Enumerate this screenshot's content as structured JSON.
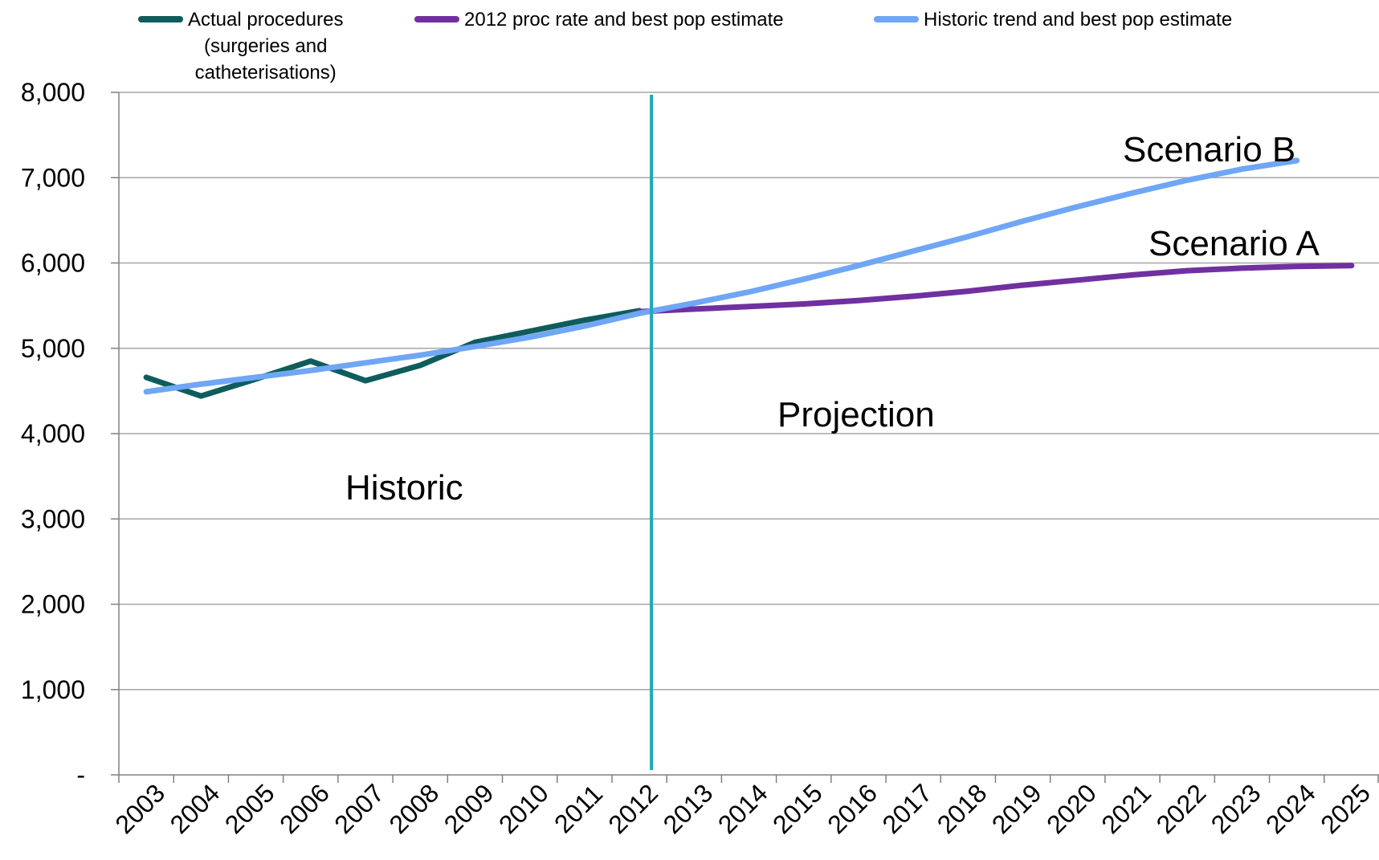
{
  "chart_data": {
    "type": "line",
    "title": "",
    "xlabel": "",
    "ylabel": "",
    "ylim": [
      0,
      8000
    ],
    "yticks": [
      0,
      1000,
      2000,
      3000,
      4000,
      5000,
      6000,
      7000,
      8000
    ],
    "ytick_labels": [
      "-",
      "1,000",
      "2,000",
      "3,000",
      "4,000",
      "5,000",
      "6,000",
      "7,000",
      "8,000"
    ],
    "categories": [
      "2003",
      "2004",
      "2005",
      "2006",
      "2007",
      "2008",
      "2009",
      "2010",
      "2011",
      "2012",
      "2013",
      "2014",
      "2015",
      "2016",
      "2017",
      "2018",
      "2019",
      "2020",
      "2021",
      "2022",
      "2023",
      "2024",
      "2025"
    ],
    "grid": true,
    "legend_position": "top",
    "series": [
      {
        "name": "Actual procedures (surgeries and catheterisations)",
        "color": "#0f5c5c",
        "values": [
          4660,
          4440,
          4640,
          4850,
          4620,
          4800,
          5070,
          5200,
          5330,
          5440,
          null,
          null,
          null,
          null,
          null,
          null,
          null,
          null,
          null,
          null,
          null,
          null,
          null
        ]
      },
      {
        "name": "2012 proc rate and best pop estimate",
        "color": "#7030a0",
        "values": [
          null,
          null,
          null,
          null,
          null,
          null,
          null,
          null,
          null,
          5430,
          5460,
          5490,
          5520,
          5560,
          5610,
          5670,
          5740,
          5800,
          5860,
          5910,
          5940,
          5960,
          5970
        ]
      },
      {
        "name": "Historic trend and best pop estimate",
        "color": "#6fa6f5",
        "values": [
          4490,
          4580,
          4660,
          4740,
          4830,
          4920,
          5020,
          5130,
          5260,
          5410,
          5530,
          5660,
          5810,
          5970,
          6140,
          6310,
          6490,
          6660,
          6820,
          6970,
          7100,
          7200,
          null
        ]
      }
    ],
    "divider": {
      "x_category": "2012",
      "color": "#1fa8b8"
    },
    "annotations": [
      {
        "text": "Historic"
      },
      {
        "text": "Projection"
      },
      {
        "text": "Scenario A"
      },
      {
        "text": "Scenario B"
      }
    ]
  },
  "legend": [
    {
      "label": "Actual procedures\n(surgeries and\ncatheterisations)",
      "color": "#0f5c5c"
    },
    {
      "label": "2012 proc rate and best pop estimate",
      "color": "#7030a0"
    },
    {
      "label": "Historic trend and best pop estimate",
      "color": "#6fa6f5"
    }
  ]
}
